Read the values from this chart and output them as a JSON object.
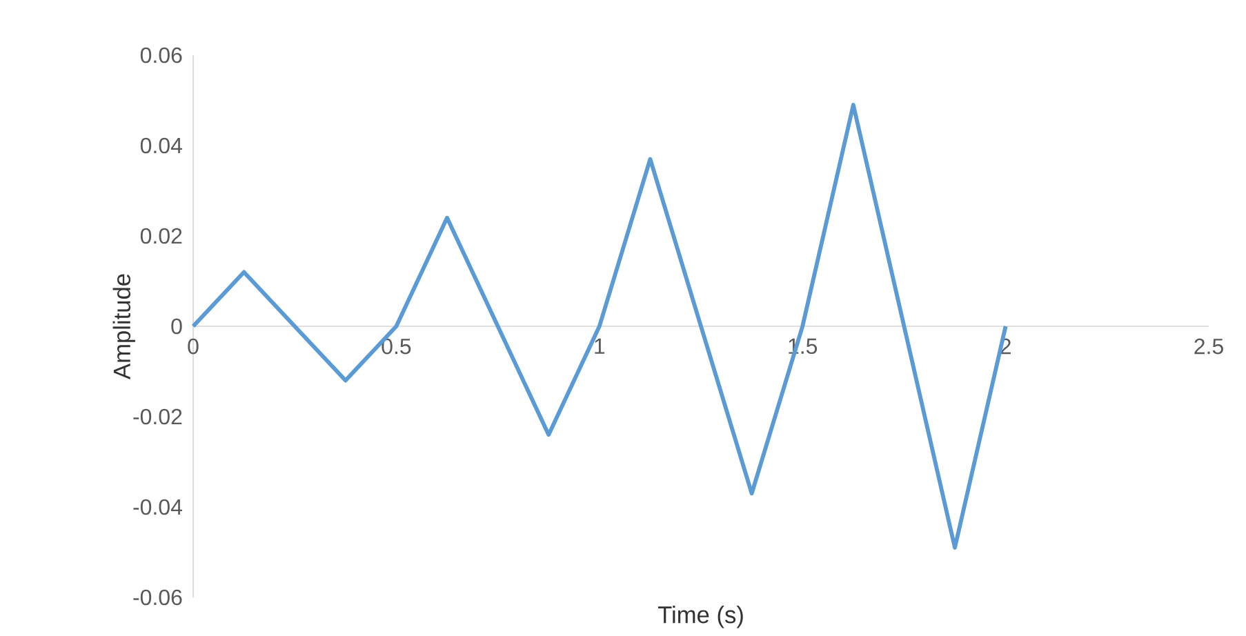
{
  "chart_data": {
    "type": "line",
    "xlabel": "Time (s)",
    "ylabel": "Amplitude",
    "x": [
      0,
      0.125,
      0.375,
      0.5,
      0.625,
      0.875,
      1,
      1.125,
      1.375,
      1.5,
      1.625,
      1.875,
      2
    ],
    "series": [
      {
        "color": "#5b9bd5",
        "values": [
          0,
          0.012,
          -0.012,
          0,
          0.024,
          -0.024,
          0,
          0.037,
          -0.037,
          0,
          0.049,
          -0.049,
          0
        ]
      }
    ],
    "xlim": [
      0,
      2.5
    ],
    "xticks": [
      0,
      0.5,
      1,
      1.5,
      2,
      2.5
    ],
    "ylim": [
      -0.06,
      0.06
    ],
    "yticks": [
      -0.06,
      -0.04,
      -0.02,
      0,
      0.02,
      0.04,
      0.06
    ],
    "grid": false,
    "marker": "none",
    "line_style": "solid"
  }
}
